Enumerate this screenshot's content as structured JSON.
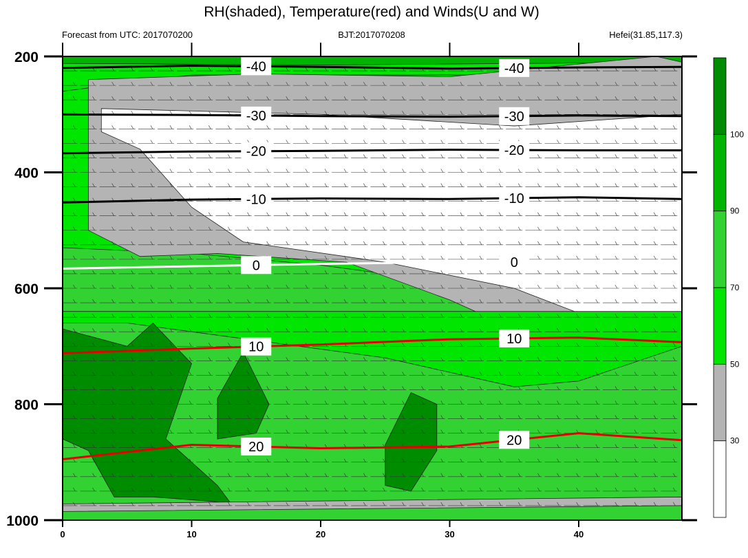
{
  "chart_data": {
    "type": "contour",
    "title": "RH(shaded), Temperature(red) and Winds(U and W)",
    "subtitle_left": "Forecast from UTC: 2017070200",
    "subtitle_center": "BJT:2017070208",
    "subtitle_right": "Hefei(31.85,117.3)",
    "x_axis": {
      "min": 0,
      "max": 48,
      "ticks": [
        0,
        10,
        20,
        30,
        40
      ],
      "tick_labels": [
        "0",
        "10",
        "20",
        "30",
        "40"
      ]
    },
    "y_axis": {
      "label": "",
      "min": 200,
      "max": 1000,
      "inverted": true,
      "ticks": [
        200,
        400,
        600,
        800,
        1000
      ],
      "tick_labels": [
        "200",
        "400",
        "600",
        "800",
        "1000"
      ]
    },
    "colorbar": {
      "levels": [
        30,
        50,
        70,
        90,
        100
      ],
      "level_labels": [
        "30",
        "50",
        "70",
        "90",
        "100"
      ],
      "colors": [
        "#ffffff",
        "#b4b4b4",
        "#00e600",
        "#32d232",
        "#00b400",
        "#008c00"
      ]
    },
    "temperature_lines": [
      {
        "label": "-40",
        "color": "#000000",
        "p": [
          220,
          216,
          218,
          221,
          219,
          218
        ]
      },
      {
        "label": "-30",
        "color": "#000000",
        "p": [
          300,
          301,
          303,
          304,
          302,
          303
        ]
      },
      {
        "label": "-20",
        "color": "#000000",
        "p": [
          367,
          364,
          363,
          361,
          362,
          362
        ]
      },
      {
        "label": "-10",
        "color": "#000000",
        "p": [
          452,
          447,
          445,
          446,
          443,
          446
        ]
      },
      {
        "label": "0",
        "color": "#ffffff",
        "p": [
          566,
          562,
          558,
          555,
          555,
          557
        ]
      },
      {
        "label": "10",
        "color": "#e60000",
        "p": [
          712,
          704,
          697,
          688,
          685,
          693
        ]
      },
      {
        "label": "20",
        "color": "#e60000",
        "p": [
          895,
          870,
          876,
          873,
          850,
          862
        ]
      }
    ],
    "temperature_x": [
      0,
      10,
      20,
      30,
      40,
      48
    ]
  }
}
